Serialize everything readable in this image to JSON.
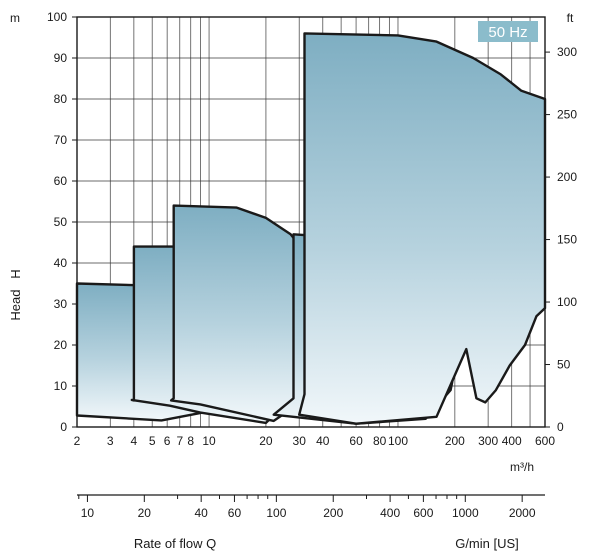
{
  "chart_data": {
    "type": "area",
    "description_units": {
      "x_primary": "m³/h",
      "y_primary": "m"
    },
    "badge": "50 Hz",
    "y_unit_left": "m",
    "y_unit_right": "ft",
    "ylabel": "Head   H",
    "x_unit_primary": "m³/h",
    "xlabel": "Rate of flow Q",
    "x_unit_secondary": "G/min [US]",
    "x_scale": "log",
    "xlim": [
      2,
      600
    ],
    "ylim": [
      0,
      100
    ],
    "grid": true,
    "y_ticks_left": [
      0,
      10,
      20,
      30,
      40,
      50,
      60,
      70,
      80,
      90,
      100
    ],
    "y_ticks_right": [
      0,
      50,
      100,
      150,
      200,
      250,
      300
    ],
    "x_ticks_primary": [
      2,
      3,
      4,
      5,
      6,
      7,
      8,
      10,
      20,
      30,
      40,
      60,
      80,
      100,
      200,
      300,
      400,
      600
    ],
    "x_tick_labels_primary": [
      "2",
      "3",
      "4",
      "5",
      "6",
      "7",
      "8",
      "10",
      "20",
      "30",
      "40",
      "60",
      "80",
      "100",
      "200",
      "300",
      "400",
      "600"
    ],
    "x_ticks_secondary": [
      10,
      20,
      40,
      60,
      100,
      200,
      400,
      600,
      1000,
      2000
    ],
    "x_tick_labels_secondary": [
      "10",
      "20",
      "40",
      "60",
      "100",
      "200",
      "400",
      "600",
      "1000",
      "2000"
    ],
    "series": [
      {
        "points": [
          [
            2,
            35
          ],
          [
            12,
            34
          ],
          [
            16,
            32
          ],
          [
            19,
            29
          ],
          [
            22,
            25
          ],
          [
            24,
            22
          ],
          [
            25,
            21
          ],
          [
            10.5,
            4
          ],
          [
            5.6,
            1.6
          ],
          [
            2,
            2.8
          ]
        ]
      },
      {
        "points": [
          [
            4,
            44
          ],
          [
            14,
            44
          ],
          [
            20,
            42
          ],
          [
            25,
            38
          ],
          [
            28,
            34
          ],
          [
            29,
            31
          ],
          [
            32,
            26
          ],
          [
            45,
            17
          ],
          [
            20,
            1
          ],
          [
            9,
            3.5
          ],
          [
            6.2,
            5.2
          ],
          [
            3.9,
            6.6
          ],
          [
            4,
            6.5
          ]
        ]
      },
      {
        "points": [
          [
            6.5,
            54
          ],
          [
            14,
            53.5
          ],
          [
            20,
            51
          ],
          [
            27,
            47
          ],
          [
            33,
            42
          ],
          [
            36,
            37
          ],
          [
            39,
            33
          ],
          [
            45,
            26
          ],
          [
            62,
            23
          ],
          [
            33,
            7
          ],
          [
            22,
            1.5
          ],
          [
            9,
            5.5
          ],
          [
            6.3,
            6.5
          ],
          [
            6.5,
            7
          ]
        ]
      },
      {
        "points": [
          [
            28,
            47
          ],
          [
            40,
            46.5
          ],
          [
            55,
            44
          ],
          [
            75,
            43.5
          ],
          [
            110,
            42
          ],
          [
            140,
            41
          ],
          [
            180,
            39
          ],
          [
            190,
            36
          ],
          [
            190,
            32
          ],
          [
            210,
            30
          ],
          [
            220,
            28
          ],
          [
            225,
            26
          ],
          [
            190,
            9
          ],
          [
            140,
            2
          ],
          [
            60,
            0.8
          ],
          [
            22,
            3
          ],
          [
            28,
            7
          ]
        ]
      },
      {
        "points": [
          [
            32,
            96
          ],
          [
            100,
            95.5
          ],
          [
            160,
            94
          ],
          [
            250,
            90
          ],
          [
            350,
            86
          ],
          [
            450,
            82
          ],
          [
            600,
            80
          ],
          [
            600,
            29
          ],
          [
            540,
            27
          ],
          [
            470,
            20
          ],
          [
            390,
            15
          ],
          [
            330,
            9
          ],
          [
            290,
            6
          ],
          [
            260,
            7
          ],
          [
            230,
            19
          ],
          [
            160,
            2.5
          ],
          [
            60,
            0.8
          ],
          [
            30,
            3
          ],
          [
            32,
            8
          ]
        ]
      }
    ]
  }
}
